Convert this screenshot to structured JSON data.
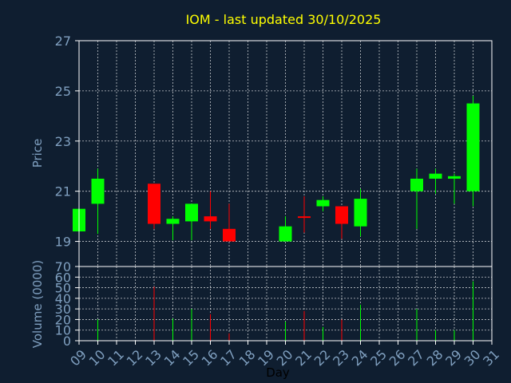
{
  "chart_data": {
    "type": "candlestick",
    "title": "IOM - last updated 30/10/2025",
    "xlabel": "Day",
    "x_ticks": [
      "09",
      "10",
      "11",
      "12",
      "13",
      "14",
      "15",
      "16",
      "17",
      "18",
      "19",
      "20",
      "21",
      "22",
      "23",
      "24",
      "25",
      "26",
      "27",
      "28",
      "29",
      "30",
      "31"
    ],
    "price_panel": {
      "ylabel": "Price",
      "ylim": [
        18,
        27
      ],
      "y_ticks": [
        19,
        21,
        23,
        25,
        27
      ],
      "candles": [
        {
          "day": 9,
          "open": 19.4,
          "high": 20.3,
          "low": 19.4,
          "close": 20.3
        },
        {
          "day": 10,
          "open": 20.5,
          "high": 21.9,
          "low": 19.3,
          "close": 21.5
        },
        {
          "day": 13,
          "open": 21.3,
          "high": 21.3,
          "low": 19.5,
          "close": 19.7
        },
        {
          "day": 14,
          "open": 19.7,
          "high": 20.0,
          "low": 19.05,
          "close": 19.9
        },
        {
          "day": 15,
          "open": 19.8,
          "high": 20.5,
          "low": 19.05,
          "close": 20.5
        },
        {
          "day": 16,
          "open": 20.0,
          "high": 21.0,
          "low": 19.5,
          "close": 19.8
        },
        {
          "day": 17,
          "open": 19.5,
          "high": 20.5,
          "low": 19.0,
          "close": 19.0
        },
        {
          "day": 20,
          "open": 19.0,
          "high": 20.0,
          "low": 19.0,
          "close": 19.6
        },
        {
          "day": 21,
          "open": 20.0,
          "high": 20.8,
          "low": 19.35,
          "close": 19.95
        },
        {
          "day": 22,
          "open": 20.4,
          "high": 20.8,
          "low": 20.2,
          "close": 20.65
        },
        {
          "day": 23,
          "open": 20.4,
          "high": 20.4,
          "low": 19.1,
          "close": 19.7
        },
        {
          "day": 24,
          "open": 19.6,
          "high": 21.1,
          "low": 19.2,
          "close": 20.7
        },
        {
          "day": 27,
          "open": 21.0,
          "high": 21.9,
          "low": 19.5,
          "close": 21.5
        },
        {
          "day": 28,
          "open": 21.5,
          "high": 21.9,
          "low": 20.9,
          "close": 21.7
        },
        {
          "day": 29,
          "open": 21.5,
          "high": 21.7,
          "low": 20.5,
          "close": 21.6
        },
        {
          "day": 30,
          "open": 21.0,
          "high": 24.8,
          "low": 20.4,
          "close": 24.5
        }
      ]
    },
    "volume_panel": {
      "ylabel": "Volume (0000)",
      "ylim": [
        0,
        70
      ],
      "y_ticks": [
        0,
        10,
        20,
        30,
        40,
        50,
        60,
        70
      ],
      "bars": [
        {
          "day": 10,
          "value": 20,
          "direction": "up"
        },
        {
          "day": 13,
          "value": 51,
          "direction": "down"
        },
        {
          "day": 14,
          "value": 21,
          "direction": "up"
        },
        {
          "day": 15,
          "value": 30,
          "direction": "up"
        },
        {
          "day": 16,
          "value": 25,
          "direction": "down"
        },
        {
          "day": 17,
          "value": 7,
          "direction": "down"
        },
        {
          "day": 20,
          "value": 18,
          "direction": "up"
        },
        {
          "day": 21,
          "value": 28,
          "direction": "down"
        },
        {
          "day": 22,
          "value": 13,
          "direction": "up"
        },
        {
          "day": 23,
          "value": 20,
          "direction": "down"
        },
        {
          "day": 24,
          "value": 34,
          "direction": "up"
        },
        {
          "day": 27,
          "value": 30,
          "direction": "up"
        },
        {
          "day": 28,
          "value": 10,
          "direction": "up"
        },
        {
          "day": 29,
          "value": 10,
          "direction": "up"
        },
        {
          "day": 30,
          "value": 56,
          "direction": "up"
        }
      ]
    },
    "x_range": [
      9,
      31
    ],
    "grid": true,
    "colors": {
      "background": "#0f1e30",
      "up": "#00ff00",
      "down": "#ff0000",
      "title": "#ffff00",
      "text": "#7f9fbf",
      "axis": "#ffffff",
      "grid": "#ffffff"
    }
  }
}
